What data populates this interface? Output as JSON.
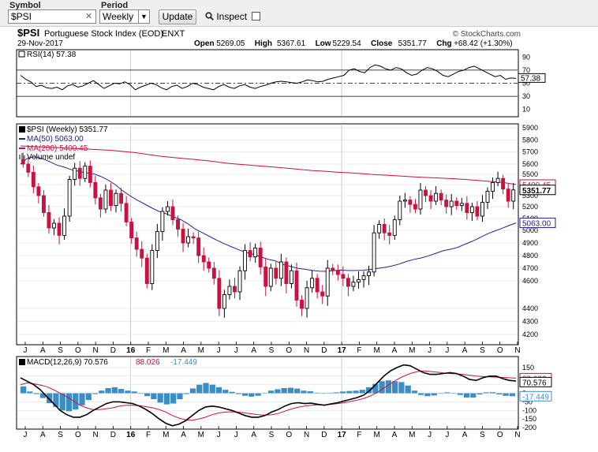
{
  "controls": {
    "symbol_label": "Symbol",
    "symbol_value": "$PSI",
    "clear_glyph": "✕",
    "period_label": "Period",
    "period_value": "Weekly",
    "update_label": "Update",
    "inspect_label": "Inspect",
    "inspect_checked": false
  },
  "header": {
    "title": "$PSI",
    "subtitle": "Portuguese Stock Index (EOD)",
    "exchange": "ENXT",
    "date": "29-Nov-2017",
    "brand": "© StockCharts.com",
    "ohlc": [
      {
        "label": "Open",
        "value": "5269.05"
      },
      {
        "label": "High",
        "value": "5367.61"
      },
      {
        "label": "Low",
        "value": "5229.54"
      },
      {
        "label": "Close",
        "value": "5351.77"
      },
      {
        "label": "Chg",
        "value": "+68.42 (+1.30%)"
      }
    ],
    "up_arrow": "▲"
  },
  "chart_data": [
    {
      "type": "line",
      "name": "RSI",
      "legend": "RSI(14) 57.38",
      "current": 57.38,
      "current_label": "57.38",
      "ylim": [
        0,
        100
      ],
      "yticks": [
        90,
        70,
        50,
        30,
        10
      ],
      "reference_lines": [
        70,
        50,
        30
      ],
      "values": [
        62,
        56,
        52,
        45,
        47,
        43,
        42,
        44,
        40,
        46,
        48,
        44,
        46,
        50,
        54,
        48,
        42,
        46,
        50,
        49,
        52,
        48,
        40,
        44,
        47,
        50,
        48,
        43,
        40,
        45,
        47,
        42,
        45,
        50,
        48,
        44,
        42,
        40,
        45,
        48,
        44,
        42,
        46,
        48,
        44,
        42,
        45,
        47,
        50,
        52,
        53,
        52,
        51,
        50,
        52,
        55,
        54,
        52,
        53,
        56,
        58,
        60,
        62,
        70,
        72,
        68,
        66,
        74,
        78,
        76,
        72,
        70,
        74,
        72,
        66,
        62,
        64,
        70,
        74,
        72,
        68,
        62,
        60,
        64,
        68,
        70,
        74,
        76,
        72,
        68,
        64,
        60,
        62,
        56,
        58,
        57.38
      ]
    },
    {
      "type": "candlestick",
      "name": "$PSI",
      "legend": "$PSI (Weekly) 5351.77",
      "ma50_legend": "MA(50) 5063.00",
      "ma200_legend": "MA(200) 5400.45",
      "volume_legend": "Volume undef",
      "last": 5351.77,
      "last_label": "5351.77",
      "ma50_last": 5063.0,
      "ma50_label": "5063.00",
      "ma200_last": 5400.45,
      "ma200_label": "5400.45",
      "ylim": [
        4200,
        5900
      ],
      "yticks": [
        5900,
        5800,
        5700,
        5600,
        5500,
        5400,
        5300,
        5200,
        5100,
        5000,
        4900,
        4800,
        4700,
        4600,
        4400,
        4300,
        4200
      ],
      "closes": [
        5600,
        5520,
        5380,
        5300,
        5150,
        5020,
        5060,
        4960,
        5120,
        5450,
        5560,
        5460,
        5580,
        5420,
        5280,
        5180,
        5350,
        5210,
        5320,
        5230,
        5070,
        4940,
        4850,
        4780,
        4580,
        4840,
        4990,
        5160,
        5200,
        5090,
        5010,
        4900,
        4950,
        4940,
        4800,
        4750,
        4700,
        4620,
        4400,
        4500,
        4560,
        4520,
        4680,
        4840,
        4790,
        4860,
        4710,
        4560,
        4700,
        4620,
        4750,
        4580,
        4680,
        4460,
        4400,
        4550,
        4620,
        4520,
        4490,
        4700,
        4680,
        4650,
        4620,
        4560,
        4590,
        4610,
        4640,
        4670,
        4980,
        5050,
        4980,
        4960,
        5090,
        5250,
        5260,
        5220,
        5180,
        5350,
        5300,
        5250,
        5320,
        5260,
        5200,
        5250,
        5210,
        5230,
        5150,
        5200,
        5120,
        5240,
        5340,
        5420,
        5460,
        5360,
        5250,
        5352
      ],
      "ma50": [
        5600,
        5650,
        5660,
        5645,
        5620,
        5590,
        5570,
        5545,
        5530,
        5515,
        5505,
        5480,
        5445,
        5400,
        5345,
        5300,
        5260,
        5225,
        5190,
        5160,
        5140,
        5115,
        5090,
        5055,
        5010,
        4980,
        4950,
        4920,
        4893,
        4869,
        4845,
        4825,
        4810,
        4790,
        4770,
        4758,
        4730,
        4715,
        4700,
        4692,
        4683,
        4676,
        4675,
        4681,
        4685,
        4681,
        4682,
        4684,
        4690,
        4698,
        4706,
        4718,
        4733,
        4754,
        4770,
        4781,
        4798,
        4818,
        4838,
        4850,
        4865,
        4890,
        4913,
        4941,
        4970,
        4993,
        5015,
        5040,
        5063
      ],
      "ma200": [
        5750,
        5745,
        5740,
        5735,
        5730,
        5725,
        5720,
        5715,
        5705,
        5695,
        5680,
        5665,
        5655,
        5645,
        5635,
        5625,
        5610,
        5600,
        5590,
        5580,
        5570,
        5560,
        5548,
        5537,
        5530,
        5520,
        5515,
        5505,
        5496,
        5490,
        5482,
        5475,
        5469,
        5464,
        5458,
        5450,
        5440,
        5430,
        5420,
        5400.45
      ]
    },
    {
      "type": "line",
      "name": "MACD",
      "legend_macd": "MACD(12,26,9) 70.576",
      "legend_signal": "88.026",
      "legend_hist": "-17.449",
      "macd_label": "70.576",
      "signal_label": "88.026",
      "hist_label": "-17.449",
      "ylim": [
        -200,
        200
      ],
      "yticks": [
        150,
        100,
        50,
        0,
        -50,
        -100,
        -150,
        -200
      ],
      "macd": [
        90,
        70,
        50,
        20,
        -20,
        -60,
        -100,
        -125,
        -140,
        -140,
        -125,
        -100,
        -80,
        -60,
        -50,
        -50,
        -55,
        -60,
        -75,
        -95,
        -120,
        -150,
        -175,
        -190,
        -180,
        -160,
        -130,
        -100,
        -80,
        -75,
        -80,
        -90,
        -100,
        -115,
        -130,
        -140,
        -140,
        -130,
        -110,
        -95,
        -75,
        -60,
        -55,
        -60,
        -58,
        -65,
        -70,
        -62,
        -55,
        -45,
        -35,
        -25,
        -10,
        20,
        60,
        100,
        130,
        150,
        165,
        160,
        140,
        120,
        110,
        110,
        115,
        120,
        115,
        100,
        80,
        75,
        90,
        100,
        100,
        85,
        75,
        70.576
      ],
      "signal": [
        50,
        60,
        55,
        48,
        38,
        20,
        0,
        -20,
        -45,
        -70,
        -85,
        -95,
        -95,
        -90,
        -85,
        -75,
        -70,
        -70,
        -72,
        -78,
        -85,
        -95,
        -110,
        -130,
        -145,
        -155,
        -158,
        -150,
        -140,
        -125,
        -115,
        -110,
        -108,
        -110,
        -115,
        -120,
        -125,
        -128,
        -125,
        -118,
        -105,
        -92,
        -82,
        -75,
        -70,
        -68,
        -67,
        -65,
        -60,
        -55,
        -48,
        -40,
        -30,
        -15,
        5,
        30,
        55,
        80,
        100,
        115,
        125,
        130,
        127,
        123,
        118,
        115,
        113,
        110,
        105,
        100,
        97,
        95,
        94,
        92,
        90,
        88.026
      ],
      "histogram": [
        40,
        10,
        -5,
        -28,
        -58,
        -80,
        -100,
        -105,
        -95,
        -70,
        -40,
        -5,
        15,
        30,
        35,
        25,
        15,
        10,
        -3,
        -17,
        -35,
        -55,
        -65,
        -60,
        -35,
        -5,
        28,
        50,
        60,
        50,
        35,
        20,
        8,
        -5,
        -15,
        -20,
        -15,
        -2,
        15,
        23,
        30,
        32,
        27,
        15,
        12,
        3,
        -3,
        3,
        5,
        10,
        13,
        15,
        20,
        35,
        55,
        70,
        75,
        70,
        65,
        45,
        15,
        -10,
        -17,
        -13,
        -3,
        5,
        2,
        -10,
        -25,
        -25,
        -7,
        5,
        6,
        -7,
        -15,
        -17.449
      ]
    }
  ],
  "xaxis": {
    "labels": [
      "J",
      "A",
      "S",
      "O",
      "N",
      "D",
      "16",
      "F",
      "M",
      "A",
      "M",
      "J",
      "J",
      "A",
      "S",
      "O",
      "N",
      "D",
      "17",
      "F",
      "M",
      "A",
      "M",
      "J",
      "J",
      "A",
      "S",
      "O",
      "N"
    ],
    "year_labels": [
      "16",
      "17"
    ]
  },
  "colors": {
    "up_candle": "#000000",
    "down_candle": "#c8123f",
    "ma50": "#23238e",
    "ma200": "#c8123f",
    "macd_hist": "#3b8dc4",
    "grid": "#dddddd",
    "panel_border": "#000000",
    "axis_text": "#000000"
  }
}
